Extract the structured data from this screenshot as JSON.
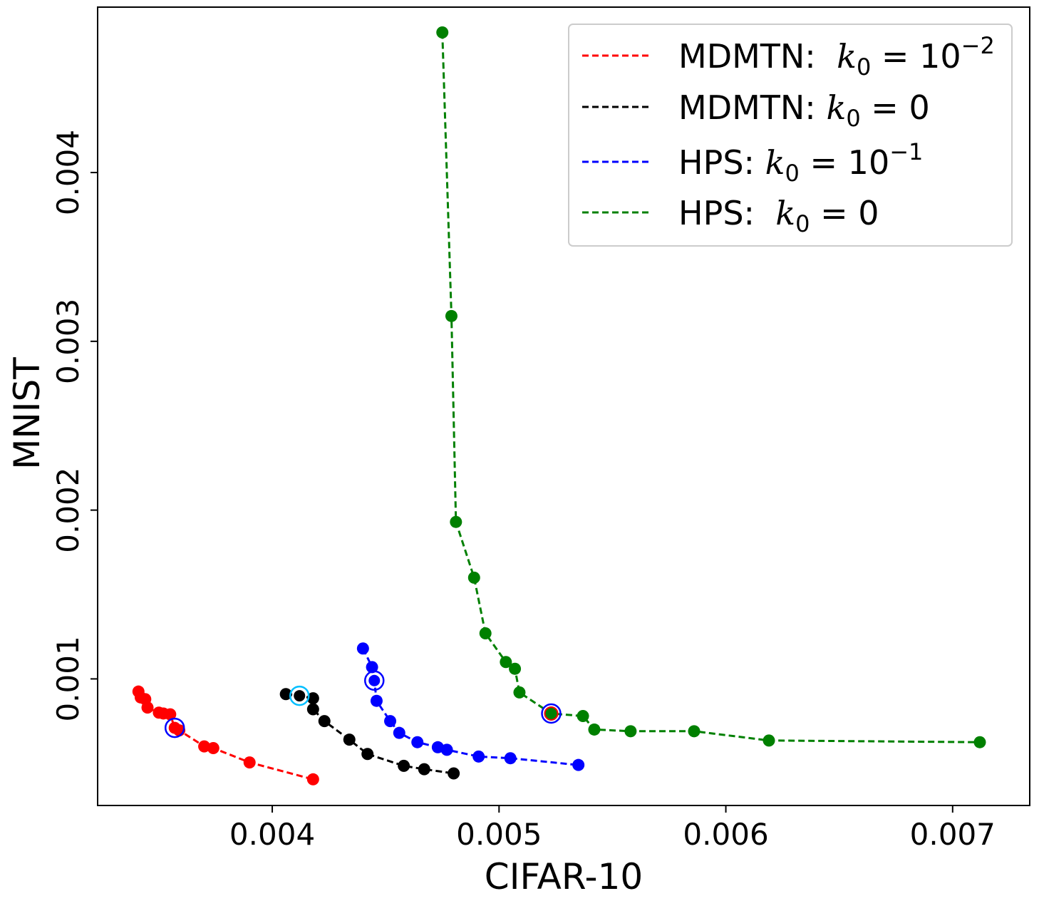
{
  "chart_data": {
    "type": "line",
    "title": "",
    "xlabel": "CIFAR-10",
    "ylabel": "MNIST",
    "xlim": [
      0.00323,
      0.00734
    ],
    "ylim": [
      0.00025,
      0.00498
    ],
    "xticks": [
      0.004,
      0.005,
      0.006,
      0.007
    ],
    "xtick_labels": [
      "0.004",
      "0.005",
      "0.006",
      "0.007"
    ],
    "yticks": [
      0.001,
      0.002,
      0.003,
      0.004
    ],
    "ytick_labels": [
      "0.001",
      "0.002",
      "0.003",
      "0.004"
    ],
    "grid": false,
    "legend_position": "top-right",
    "series": [
      {
        "name": "MDMTN: k0 = 10^-2",
        "legend": {
          "prefix": "MDMTN:  ",
          "var": "k",
          "sub": "0",
          "eq": " = 10",
          "sup": "−2"
        },
        "color": "#ff0000",
        "x": [
          0.00341,
          0.00342,
          0.00344,
          0.00345,
          0.0035,
          0.00352,
          0.00355,
          0.00357,
          0.00359,
          0.0037,
          0.00374,
          0.0039,
          0.00418
        ],
        "y": [
          0.000925,
          0.00089,
          0.00088,
          0.00083,
          0.0008,
          0.000795,
          0.00079,
          0.00071,
          0.000695,
          0.0006,
          0.00059,
          0.000505,
          0.000405
        ],
        "highlight": [
          0.00357,
          0.00071
        ]
      },
      {
        "name": "MDMTN: k0 = 0",
        "legend": {
          "prefix": "MDMTN: ",
          "var": "k",
          "sub": "0",
          "eq": " = 0",
          "sup": ""
        },
        "color": "#000000",
        "x": [
          0.00406,
          0.00412,
          0.00418,
          0.00418,
          0.00423,
          0.00434,
          0.00442,
          0.00458,
          0.00467,
          0.0048
        ],
        "y": [
          0.00091,
          0.0009,
          0.000885,
          0.00082,
          0.00075,
          0.00064,
          0.000555,
          0.000485,
          0.000465,
          0.00044
        ],
        "highlight": [
          0.00412,
          0.0009
        ]
      },
      {
        "name": "HPS: k0 = 10^-1",
        "legend": {
          "prefix": "HPS: ",
          "var": "k",
          "sub": "0",
          "eq": " = 10",
          "sup": "−1"
        },
        "color": "#0000ff",
        "x": [
          0.0044,
          0.00444,
          0.00445,
          0.00446,
          0.00452,
          0.00456,
          0.00464,
          0.00473,
          0.00477,
          0.00491,
          0.00505,
          0.00535
        ],
        "y": [
          0.00118,
          0.00107,
          0.00099,
          0.00087,
          0.00075,
          0.00068,
          0.000625,
          0.000595,
          0.00058,
          0.00054,
          0.00053,
          0.00049
        ],
        "highlight": [
          0.00445,
          0.00099
        ]
      },
      {
        "name": "HPS: k0 = 0",
        "legend": {
          "prefix": "HPS:  ",
          "var": "k",
          "sub": "0",
          "eq": " = 0",
          "sup": ""
        },
        "color": "#008000",
        "x": [
          0.00475,
          0.00479,
          0.00481,
          0.00489,
          0.00494,
          0.00503,
          0.00507,
          0.00509,
          0.00523,
          0.00537,
          0.00542,
          0.00558,
          0.00586,
          0.00619,
          0.00712
        ],
        "y": [
          0.00483,
          0.00315,
          0.00193,
          0.0016,
          0.00127,
          0.0011,
          0.00106,
          0.00092,
          0.000795,
          0.00078,
          0.0007,
          0.00069,
          0.00069,
          0.000635,
          0.000625
        ],
        "highlight": [
          0.00523,
          0.000795
        ]
      }
    ]
  }
}
